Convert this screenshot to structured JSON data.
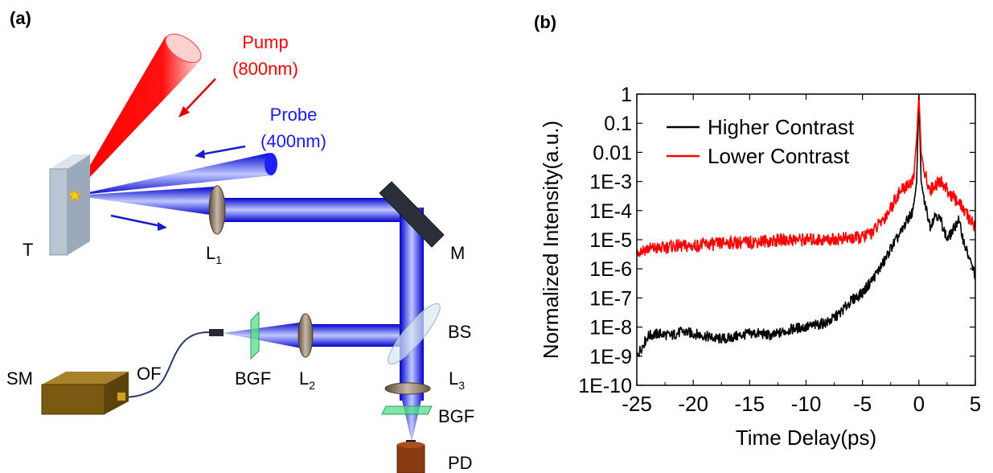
{
  "panel_a": {
    "tag": "(a)",
    "pump_label": "Pump",
    "pump_wavelength": "(800nm)",
    "probe_label": "Probe",
    "probe_wavelength": "(400nm)",
    "components": {
      "target": "T",
      "lens1": "L",
      "lens1_sub": "1",
      "mirror": "M",
      "beam_splitter": "BS",
      "lens2": "L",
      "lens2_sub": "2",
      "lens3": "L",
      "lens3_sub": "3",
      "bgf_left": "BGF",
      "bgf_bottom": "BGF",
      "spectrometer": "SM",
      "optical_fiber": "OF",
      "photodiode": "PD"
    },
    "colors": {
      "pump": "#ff0000",
      "probe": "#1a1aff",
      "target": "#b8c6d4",
      "filter": "#55dd88",
      "spectrometer": "#7a5a10",
      "photodiode": "#8a3a12"
    }
  },
  "panel_b": {
    "tag": "(b)"
  },
  "chart_data": {
    "type": "line",
    "xlabel": "Time Delay(ps)",
    "ylabel": "Normalized Intensity(a.u.)",
    "xlim": [
      -25,
      5
    ],
    "x_ticks": [
      -25,
      -20,
      -15,
      -10,
      -5,
      0,
      5
    ],
    "x_tick_labels": [
      "-25",
      "-20",
      "-15",
      "-10",
      "-5",
      "0",
      "5"
    ],
    "y_scale": "log",
    "ylim": [
      1e-10,
      1
    ],
    "y_ticks": [
      1e-10,
      1e-09,
      1e-08,
      1e-07,
      1e-06,
      1e-05,
      0.0001,
      0.001,
      0.01,
      0.1,
      1
    ],
    "y_tick_labels": [
      "1E-10",
      "1E-9",
      "1E-8",
      "1E-7",
      "1E-6",
      "1E-5",
      "1E-4",
      "1E-3",
      "0.01",
      "0.1",
      "1"
    ],
    "legend_position": "top-left",
    "series": [
      {
        "name": "Higher Contrast",
        "color": "#000000",
        "x": [
          -25,
          -24,
          -23,
          -22,
          -21,
          -20,
          -19,
          -18,
          -17,
          -16,
          -15,
          -14,
          -13,
          -12,
          -11,
          -10,
          -9,
          -8,
          -7,
          -6,
          -5,
          -4,
          -3,
          -2.5,
          -2,
          -1.5,
          -1,
          -0.5,
          -0.2,
          0,
          0.2,
          0.5,
          1,
          1.5,
          2,
          2.5,
          3,
          3.5,
          4,
          4.5,
          5
        ],
        "y": [
          1e-09,
          5e-09,
          6e-09,
          5e-09,
          7e-09,
          6e-09,
          5e-09,
          4e-09,
          4e-09,
          5e-09,
          6e-09,
          6e-09,
          5e-09,
          7e-09,
          9e-09,
          1e-08,
          1.2e-08,
          1.5e-08,
          3e-08,
          8e-08,
          1.5e-07,
          5e-07,
          2e-06,
          5e-06,
          1e-05,
          2e-05,
          5e-05,
          0.0001,
          0.001,
          0.8,
          0.001,
          0.0002,
          3e-05,
          8e-05,
          4e-05,
          1e-05,
          2e-05,
          5e-05,
          8e-06,
          2e-06,
          6e-07
        ]
      },
      {
        "name": "Lower Contrast",
        "color": "#ff0000",
        "x": [
          -25,
          -24,
          -23,
          -22,
          -21,
          -20,
          -19,
          -18,
          -17,
          -16,
          -15,
          -14,
          -13,
          -12,
          -11,
          -10,
          -9,
          -8,
          -7,
          -6,
          -5,
          -4,
          -3,
          -2.5,
          -2,
          -1.5,
          -1,
          -0.5,
          -0.2,
          0,
          0.2,
          0.5,
          1,
          1.5,
          2,
          2.5,
          3,
          3.5,
          4,
          4.5,
          5
        ],
        "y": [
          4e-06,
          5e-06,
          5e-06,
          6e-06,
          6e-06,
          6e-06,
          7e-06,
          7e-06,
          8e-06,
          8e-06,
          8e-06,
          9e-06,
          9e-06,
          1e-05,
          1e-05,
          1e-05,
          1e-05,
          1e-05,
          1.1e-05,
          1.1e-05,
          1.2e-05,
          2e-05,
          6e-05,
          0.00012,
          0.0003,
          0.0005,
          0.0008,
          0.001,
          0.03,
          1.0,
          0.01,
          0.002,
          0.0005,
          0.0008,
          0.001,
          0.0005,
          0.0003,
          0.0002,
          0.0001,
          5e-05,
          3e-05
        ]
      }
    ]
  }
}
